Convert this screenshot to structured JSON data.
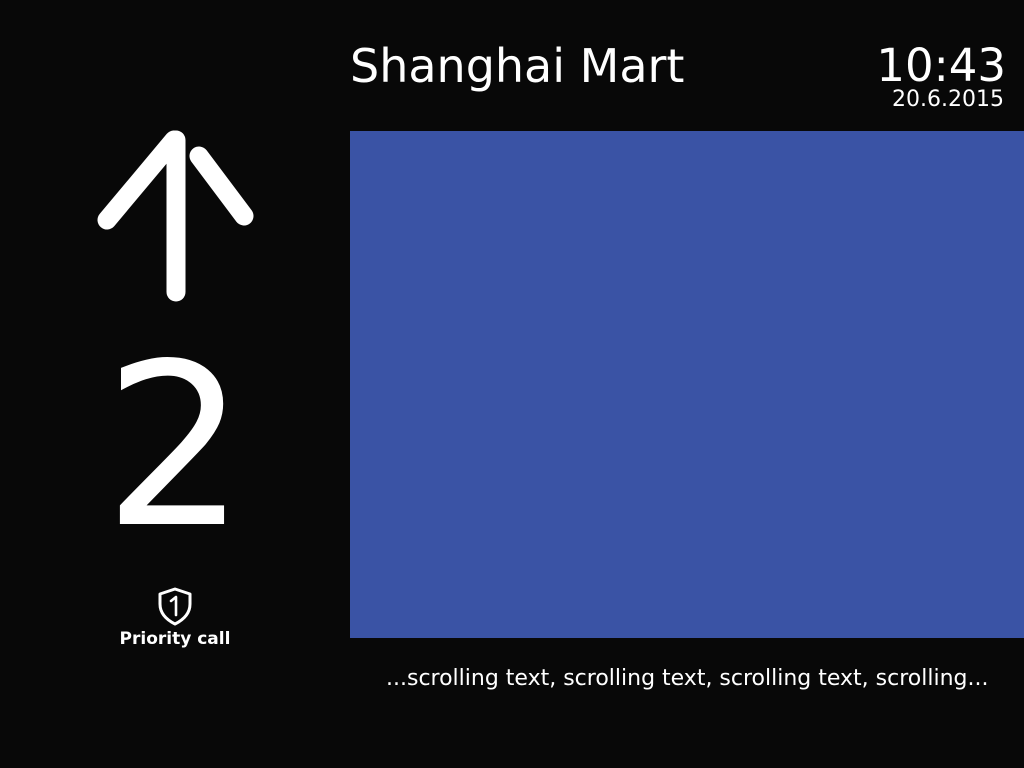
{
  "header": {
    "building_name": "Shanghai Mart",
    "time": "10:43",
    "date": "20.6.2015"
  },
  "elevator": {
    "direction": "up",
    "direction_icon": "up-arrow-icon",
    "floor": "2",
    "priority_icon": "shield-1-icon",
    "priority_label": "Priority call"
  },
  "media": {
    "background_color": "#3a53a5"
  },
  "ticker": {
    "text": "...scrolling text, scrolling text, scrolling text, scrolling..."
  },
  "colors": {
    "background": "#080808",
    "foreground": "#ffffff",
    "media_panel": "#3a53a5"
  }
}
